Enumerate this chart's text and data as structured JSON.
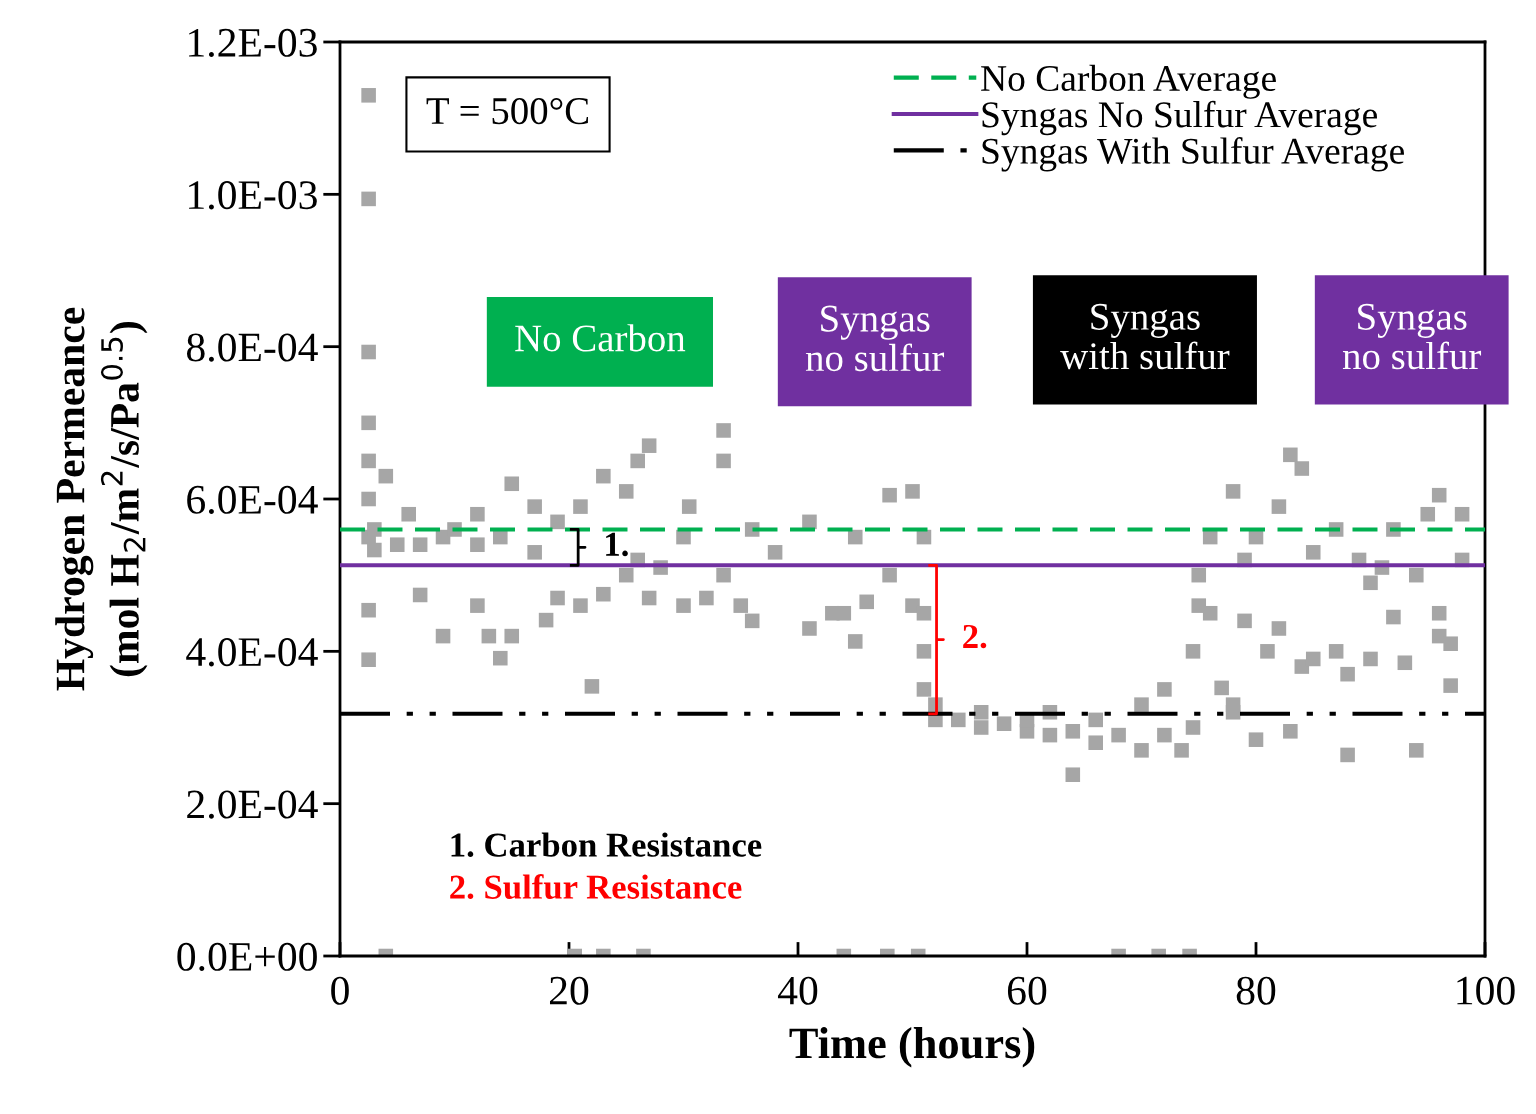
{
  "chart_data": {
    "type": "scatter",
    "xlabel": "Time (hours)",
    "ylabel": "Hydrogen Permeance\n(mol H$_{2}$/m$^{2}$/s/Pa$^{0.5}$)",
    "xlim": [
      0,
      100
    ],
    "xticks": [
      0,
      20,
      40,
      60,
      80,
      100
    ],
    "ylim": [
      0,
      0.0012
    ],
    "yticks": [
      {
        "value": 0,
        "label": "0.0E+00"
      },
      {
        "value": 0.0002,
        "label": "2.0E-04"
      },
      {
        "value": 0.0004,
        "label": "4.0E-04"
      },
      {
        "value": 0.0006,
        "label": "6.0E-04"
      },
      {
        "value": 0.0008,
        "label": "8.0E-04"
      },
      {
        "value": 0.001,
        "label": "1.0E-03"
      },
      {
        "value": 0.0012,
        "label": "1.2E-03"
      }
    ],
    "marker": "square",
    "grid": false,
    "legend": "top right",
    "series": [
      {
        "color": "#a6a6a6",
        "x": [
          2.5,
          2.5,
          2.5,
          2.5,
          2.5,
          2.5,
          2.5,
          2.5,
          2.5,
          3,
          3,
          4,
          5,
          6,
          7,
          7,
          9,
          9,
          10,
          12,
          12,
          12,
          13,
          14,
          14,
          15,
          15,
          17,
          17,
          18,
          19,
          19,
          21,
          21,
          22,
          23,
          23,
          25,
          25,
          26,
          26,
          27,
          27,
          28,
          30,
          30,
          30.5,
          32,
          33.5,
          33.5,
          33.5,
          35,
          36,
          36,
          38,
          41,
          41,
          43,
          44,
          45,
          45,
          46,
          48,
          48,
          50,
          50,
          51,
          51,
          51,
          51,
          52,
          52,
          54,
          56,
          56,
          58,
          60,
          60,
          62,
          62,
          64,
          64,
          66,
          66,
          68,
          70,
          70,
          72,
          72,
          73.5,
          74.5,
          74.5,
          75,
          75,
          76,
          76,
          77,
          78,
          78,
          78,
          79,
          79,
          80,
          80,
          81,
          82,
          82,
          83,
          83,
          84,
          84,
          85,
          85,
          87,
          87,
          88,
          88,
          89,
          90,
          90,
          91,
          92,
          92,
          93,
          94,
          94,
          95,
          96,
          96,
          96,
          97,
          97,
          98,
          98,
          4,
          20.5,
          23,
          26.5,
          44,
          47.8,
          50.5,
          68,
          71.5,
          74.2
        ],
        "values": [
          0.00113,
          0.000994,
          0.000793,
          0.0007,
          0.00065,
          0.0006,
          0.00055,
          0.000454,
          0.000389,
          0.00056,
          0.000533,
          0.00063,
          0.00054,
          0.00058,
          0.000474,
          0.00054,
          0.00042,
          0.00055,
          0.00056,
          0.00046,
          0.00054,
          0.00058,
          0.00042,
          0.000391,
          0.00055,
          0.00062,
          0.00042,
          0.00053,
          0.00059,
          0.000441,
          0.00047,
          0.00057,
          0.00046,
          0.00059,
          0.000354,
          0.00063,
          0.000475,
          0.00061,
          0.0005,
          0.00065,
          0.00052,
          0.00067,
          0.00047,
          0.00051,
          0.00046,
          0.00055,
          0.00059,
          0.00047,
          0.00069,
          0.00065,
          0.0005,
          0.00046,
          0.00044,
          0.00056,
          0.00053,
          0.00043,
          0.00057,
          0.00045,
          0.00045,
          0.00055,
          0.000413,
          0.000465,
          0.000605,
          0.0005,
          0.00061,
          0.00046,
          0.00055,
          0.00045,
          0.0004,
          0.00035,
          0.00033,
          0.00031,
          0.00031,
          0.0003,
          0.00032,
          0.000305,
          0.000295,
          0.00031,
          0.00029,
          0.00032,
          0.000238,
          0.000295,
          0.00028,
          0.00031,
          0.00029,
          0.00033,
          0.00027,
          0.00035,
          0.00029,
          0.00027,
          0.0003,
          0.0004,
          0.00046,
          0.0005,
          0.00055,
          0.00045,
          0.000352,
          0.00061,
          0.00033,
          0.00032,
          0.00044,
          0.00052,
          0.000284,
          0.00055,
          0.0004,
          0.00059,
          0.00043,
          0.000658,
          0.000295,
          0.00064,
          0.00038,
          0.00053,
          0.00039,
          0.0004,
          0.00056,
          0.000264,
          0.00037,
          0.00052,
          0.00039,
          0.00049,
          0.00051,
          0.00056,
          0.000445,
          0.000385,
          0.00027,
          0.0005,
          0.00058,
          0.000605,
          0.00042,
          0.00045,
          0.000355,
          0.00041,
          0.00058,
          0.00052,
          0,
          0,
          0,
          0,
          0,
          0,
          0,
          0,
          0,
          0
        ]
      }
    ],
    "ref_lines": [
      {
        "axis": "y",
        "value": 0.00056,
        "label": "No Carbon Average",
        "color": "#00b050",
        "line_style": "dashed"
      },
      {
        "axis": "y",
        "value": 0.000513,
        "label": "Syngas No Sulfur Average",
        "color": "#7030a0",
        "line_style": "solid"
      },
      {
        "axis": "y",
        "value": 0.000318,
        "label": "Syngas With Sulfur Average",
        "color": "#000000",
        "line_style": "dashdotdot"
      }
    ],
    "annotations": [
      "T = 500°C",
      "No Carbon",
      "Syngas\nno sulfur",
      "Syngas\nwith sulfur",
      "Syngas\nno sulfur",
      "1.",
      "2.",
      "1. Carbon Resistance",
      "2. Sulfur Resistance"
    ]
  }
}
